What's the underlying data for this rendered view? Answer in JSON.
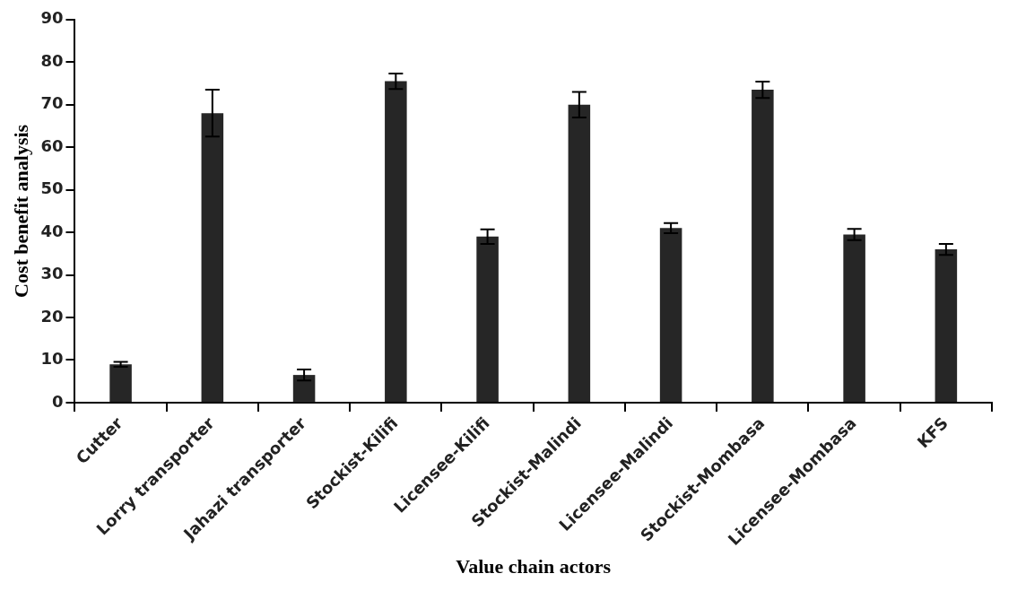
{
  "chart_data": {
    "type": "bar",
    "xlabel": "Value chain actors",
    "ylabel": "Cost benefit analysis",
    "categories": [
      "Cutter",
      "Lorry transporter",
      "Jahazi transporter",
      "Stockist-Kilifi",
      "Licensee-Kilifi",
      "Stockist-Malindi",
      "Licensee-Malindi",
      "Stockist-Mombasa",
      "Licensee-Mombasa",
      "KFS"
    ],
    "values": [
      9,
      68,
      6.5,
      75.5,
      39,
      70,
      41,
      73.5,
      39.5,
      36
    ],
    "errors": [
      0.6,
      5.5,
      1.3,
      1.8,
      1.7,
      3,
      1.2,
      1.9,
      1.3,
      1.3
    ],
    "color": "#262626",
    "ylim": [
      0,
      90
    ],
    "yticks": [
      0,
      10,
      20,
      30,
      40,
      50,
      60,
      70,
      80,
      90
    ],
    "grid": false,
    "legend": false
  }
}
